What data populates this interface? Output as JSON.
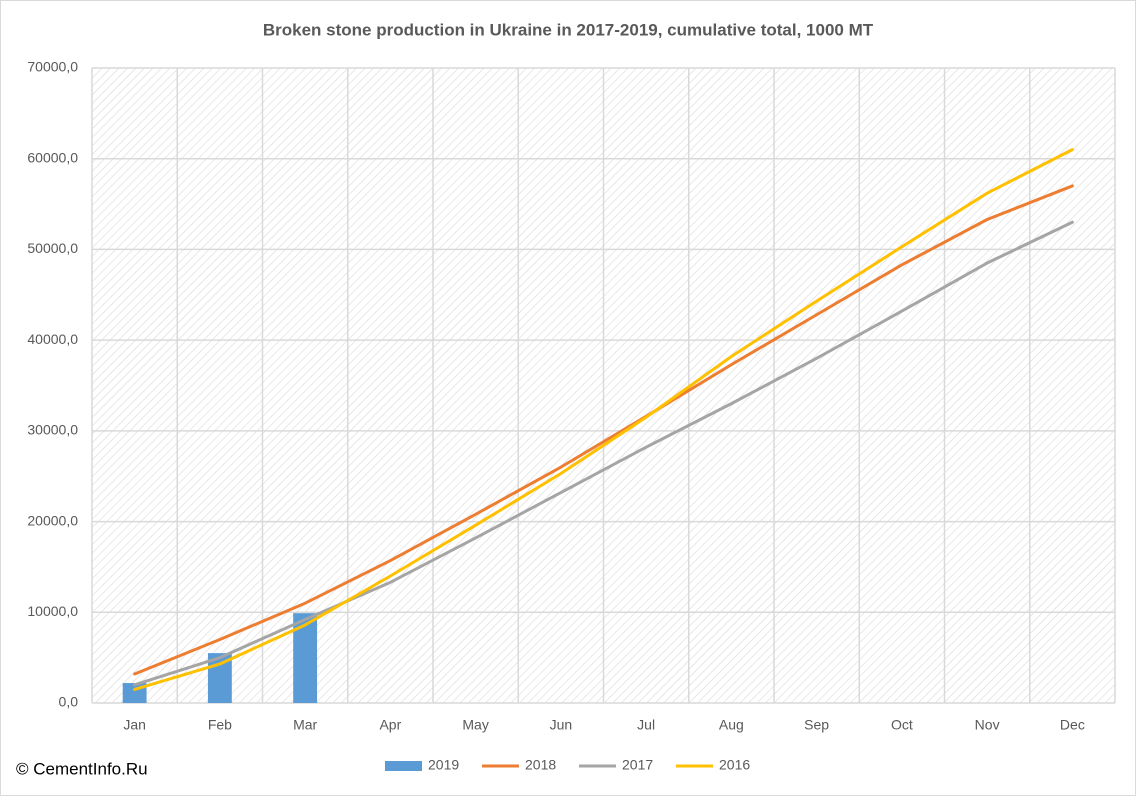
{
  "chart_data": {
    "type": "line",
    "title": "Broken stone production in Ukraine in 2017-2019, cumulative total, 1000 MT",
    "annotation": "© CementInfo.Ru",
    "categories": [
      "Jan",
      "Feb",
      "Mar",
      "Apr",
      "May",
      "Jun",
      "Jul",
      "Aug",
      "Sep",
      "Oct",
      "Nov",
      "Dec"
    ],
    "series": [
      {
        "name": "2019",
        "type": "bar",
        "color": "#5b9bd5",
        "values": [
          2200,
          5500,
          9900,
          null,
          null,
          null,
          null,
          null,
          null,
          null,
          null,
          null
        ]
      },
      {
        "name": "2018",
        "type": "line",
        "color": "#ed7d31",
        "values": [
          3200,
          7000,
          11000,
          15700,
          20800,
          26000,
          31600,
          37300,
          42800,
          48300,
          53300,
          57000
        ]
      },
      {
        "name": "2017",
        "type": "line",
        "color": "#a5a5a5",
        "values": [
          2000,
          5000,
          9200,
          13300,
          18200,
          23200,
          28200,
          33000,
          38000,
          43200,
          48500,
          53000
        ]
      },
      {
        "name": "2016",
        "type": "line",
        "color": "#ffc000",
        "values": [
          1500,
          4300,
          8600,
          14000,
          19600,
          25300,
          31500,
          38200,
          44300,
          50300,
          56200,
          61000
        ]
      }
    ],
    "ylim": [
      0,
      70000
    ],
    "yticks": [
      {
        "value": 0,
        "label": "0,0"
      },
      {
        "value": 10000,
        "label": "10000,0"
      },
      {
        "value": 20000,
        "label": "20000,0"
      },
      {
        "value": 30000,
        "label": "30000,0"
      },
      {
        "value": 40000,
        "label": "40000,0"
      },
      {
        "value": 50000,
        "label": "50000,0"
      },
      {
        "value": 60000,
        "label": "60000,0"
      },
      {
        "value": 70000,
        "label": "70000,0"
      }
    ],
    "grid": true,
    "legend": "bottom"
  }
}
